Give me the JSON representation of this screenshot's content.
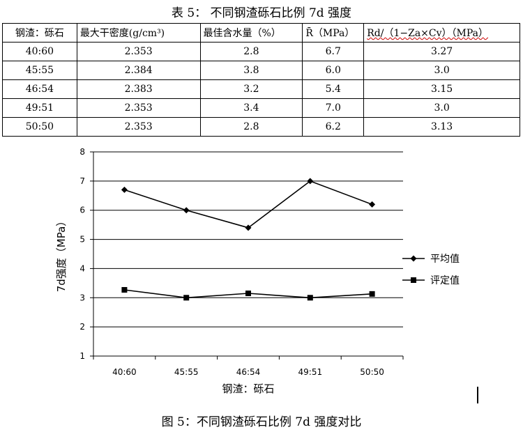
{
  "table": {
    "caption": "表 5：  不同钢渣砾石比例 7d 强度",
    "headers": [
      "钢渣：砾石",
      "最大干密度(g/cm³)",
      "最佳含水量（%）",
      "R̄（MPa）",
      "Rd/（1−Za×Cv）（MPa）"
    ],
    "rows": [
      [
        "40:60",
        "2.353",
        "2.8",
        "6.7",
        "3.27"
      ],
      [
        "45:55",
        "2.384",
        "3.8",
        "6.0",
        "3.0"
      ],
      [
        "46:54",
        "2.383",
        "3.2",
        "5.4",
        "3.15"
      ],
      [
        "49:51",
        "2.353",
        "3.4",
        "7.0",
        "3.0"
      ],
      [
        "50:50",
        "2.353",
        "2.8",
        "6.2",
        "3.13"
      ]
    ]
  },
  "chart_data": {
    "type": "line",
    "categories": [
      "40:60",
      "45:55",
      "46:54",
      "49:51",
      "50:50"
    ],
    "series": [
      {
        "name": "平均值",
        "values": [
          6.7,
          6.0,
          5.4,
          7.0,
          6.2
        ],
        "marker": "diamond"
      },
      {
        "name": "评定值",
        "values": [
          3.27,
          3.0,
          3.15,
          3.0,
          3.13
        ],
        "marker": "square"
      }
    ],
    "ylim": [
      1,
      8
    ],
    "yticks": [
      1,
      2,
      3,
      4,
      5,
      6,
      7,
      8
    ],
    "xlabel": "钢渣：砾石",
    "ylabel": "7d强度（MPa）",
    "grid": "horizontal",
    "legend": "right",
    "color": "#000000"
  },
  "figure": {
    "caption": "图 5：不同钢渣砾石比例 7d 强度对比"
  }
}
